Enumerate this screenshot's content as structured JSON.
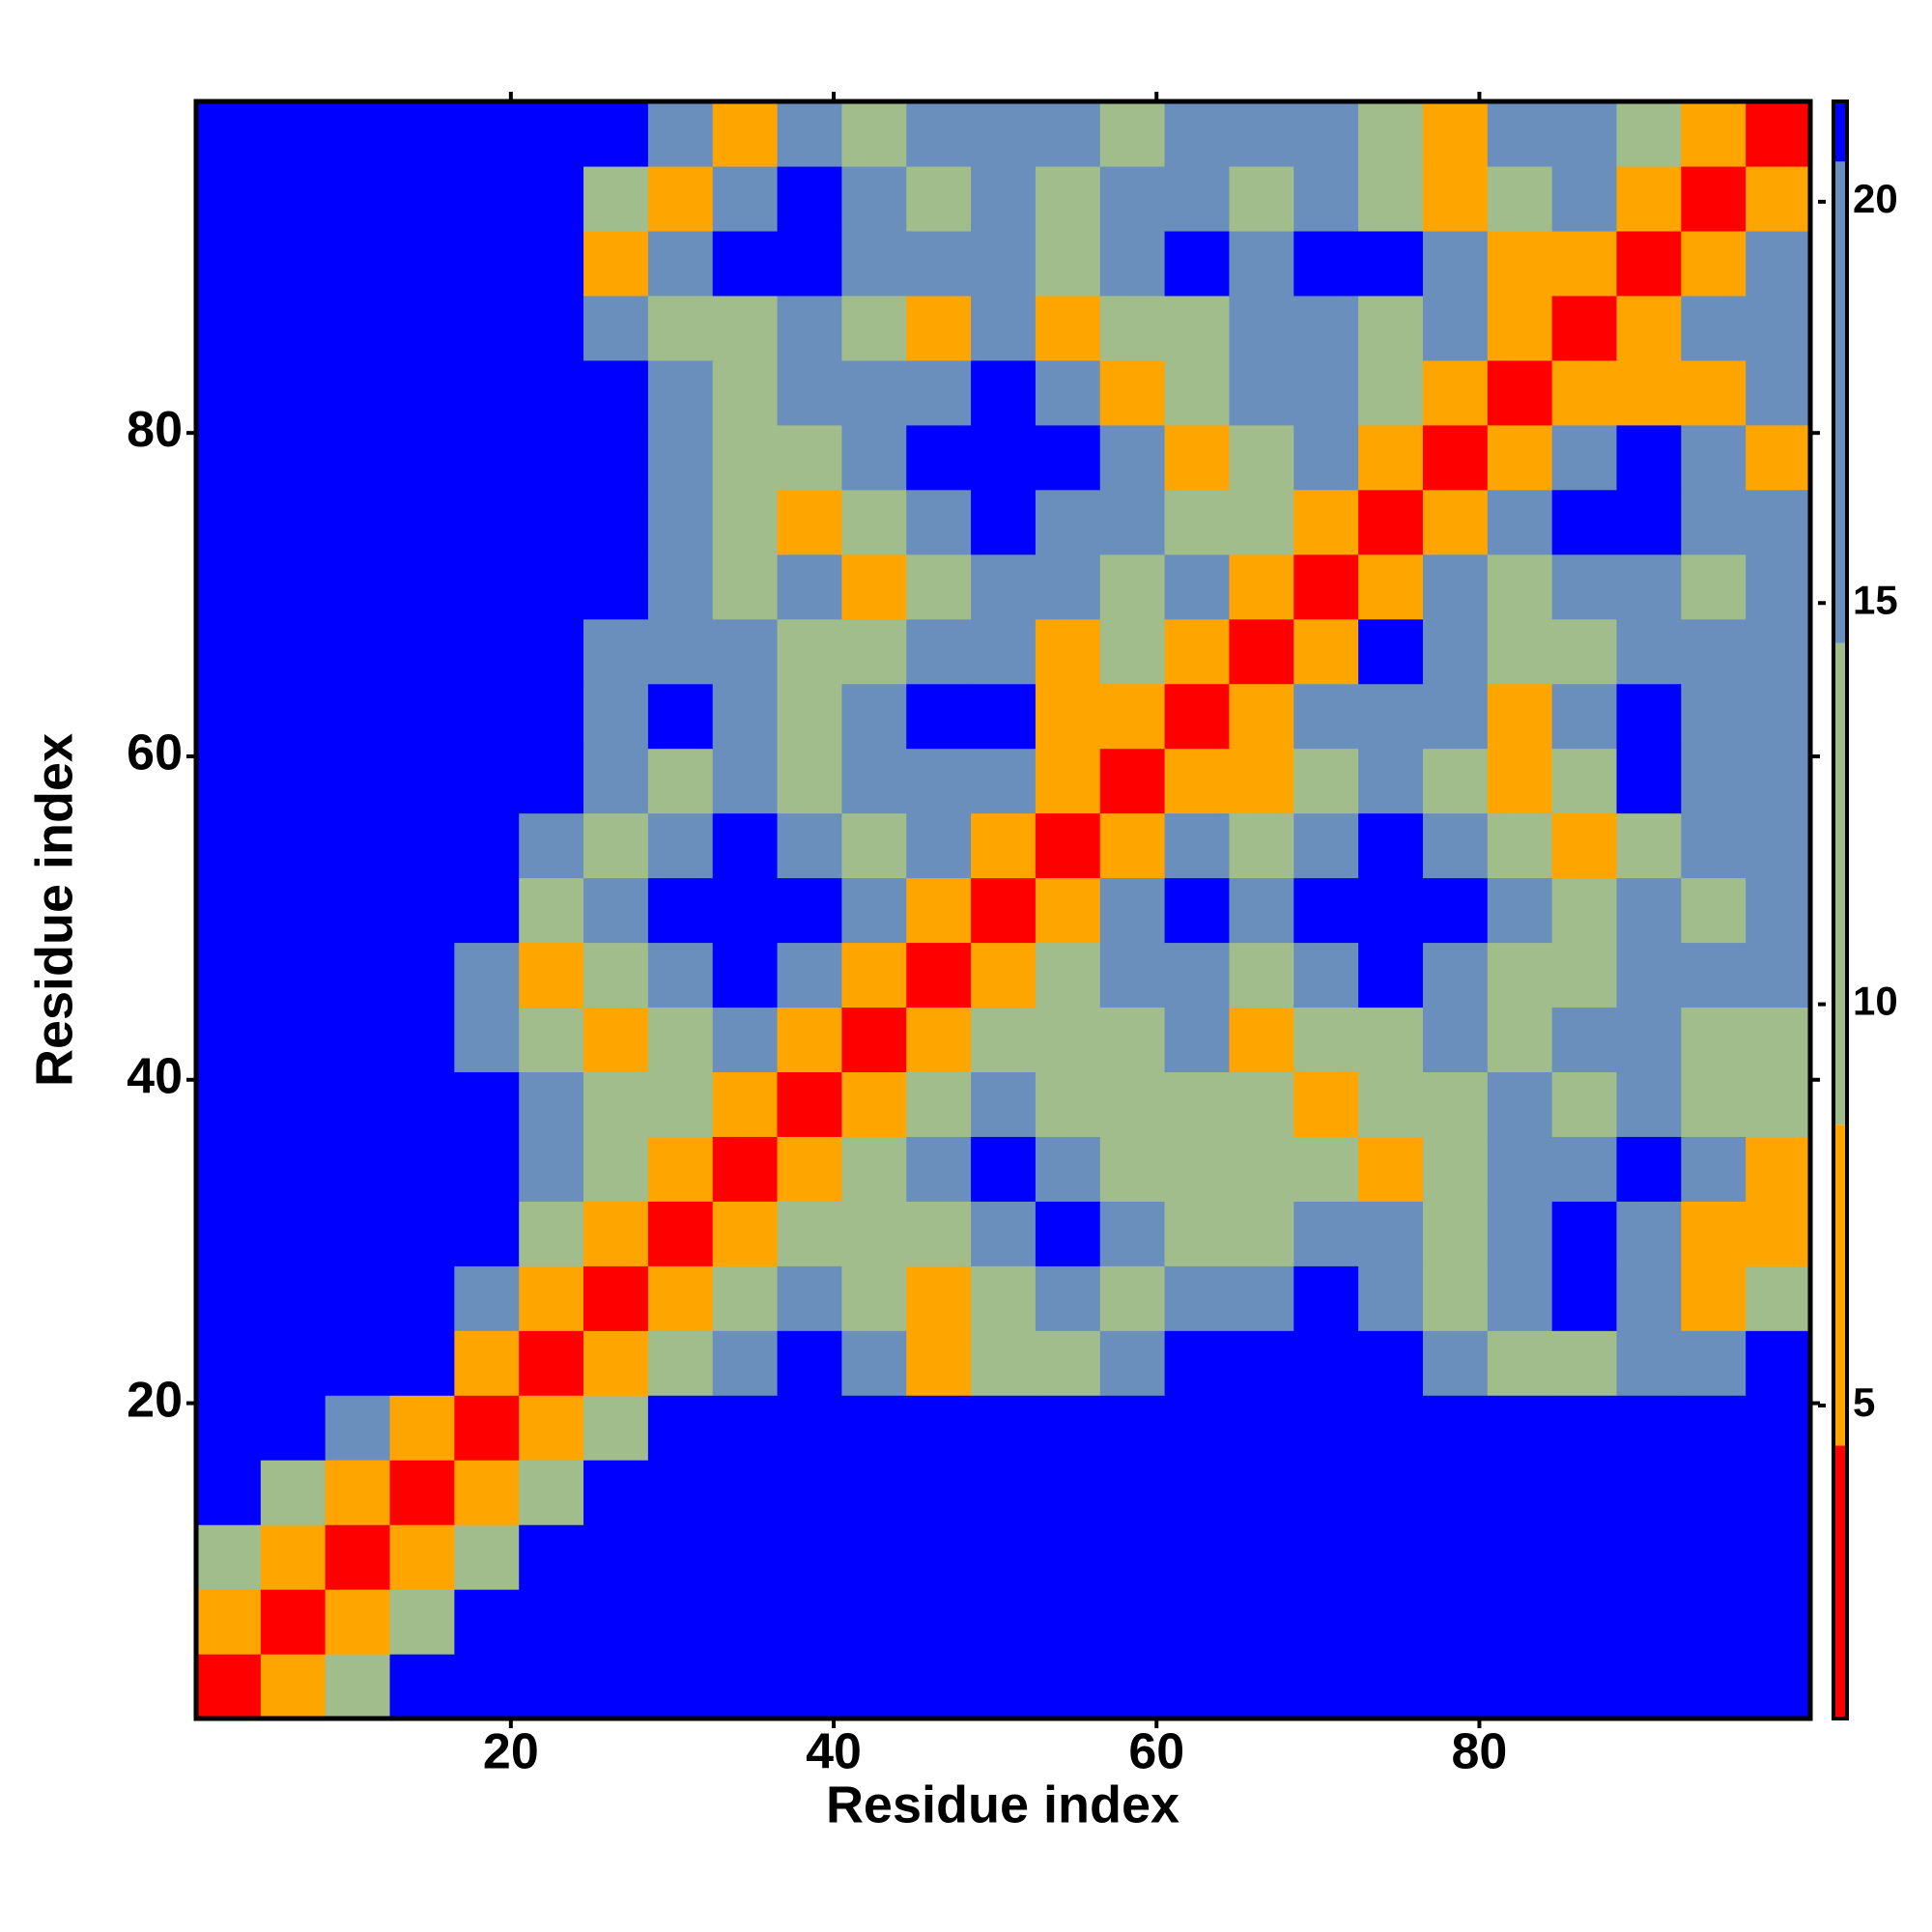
{
  "chart_data": {
    "type": "heatmap",
    "xlabel": "Residue index",
    "ylabel": "Residue index",
    "xlim": [
      0.5,
      100.5
    ],
    "ylim": [
      0.5,
      100.5
    ],
    "xticks": [
      20,
      40,
      60,
      80
    ],
    "yticks": [
      20,
      40,
      60,
      80
    ],
    "x": [
      2.5,
      6.5,
      10.5,
      14.5,
      18.5,
      22.5,
      26.5,
      30.5,
      34.5,
      38.5,
      42.5,
      46.5,
      50.5,
      54.5,
      58.5,
      62.5,
      66.5,
      70.5,
      74.5,
      78.5,
      82.5,
      86.5,
      90.5,
      94.5,
      98.5
    ],
    "y": [
      2.5,
      6.5,
      10.5,
      14.5,
      18.5,
      22.5,
      26.5,
      30.5,
      34.5,
      38.5,
      42.5,
      46.5,
      50.5,
      54.5,
      58.5,
      62.5,
      66.5,
      70.5,
      74.5,
      78.5,
      82.5,
      86.5,
      90.5,
      94.5,
      98.5
    ],
    "z": [
      [
        1.5,
        5,
        14,
        21,
        21,
        21,
        21,
        21,
        21,
        21,
        21,
        21,
        21,
        21,
        21,
        21,
        21,
        21,
        21,
        21,
        21,
        21,
        21,
        21,
        21
      ],
      [
        5,
        1.5,
        5,
        14,
        21,
        21,
        21,
        21,
        21,
        21,
        21,
        21,
        21,
        21,
        21,
        21,
        21,
        21,
        21,
        21,
        21,
        21,
        21,
        21,
        21
      ],
      [
        14,
        5,
        1.5,
        5,
        14,
        21,
        21,
        21,
        21,
        21,
        21,
        21,
        21,
        21,
        21,
        21,
        21,
        21,
        21,
        21,
        21,
        21,
        21,
        21,
        21
      ],
      [
        21,
        14,
        5,
        1.5,
        5,
        14,
        21,
        21,
        21,
        21,
        21,
        21,
        21,
        21,
        21,
        21,
        21,
        21,
        21,
        21,
        21,
        21,
        21,
        21,
        21
      ],
      [
        21,
        21,
        17,
        5,
        1.5,
        5,
        14,
        21,
        21,
        21,
        21,
        21,
        21,
        21,
        21,
        21,
        21,
        21,
        21,
        21,
        21,
        21,
        21,
        21,
        21
      ],
      [
        21,
        21,
        21,
        21,
        5,
        1.5,
        5,
        14,
        17,
        21,
        17,
        7,
        13,
        13,
        17,
        21,
        21,
        21,
        21,
        17,
        13,
        13,
        17,
        17,
        21
      ],
      [
        21,
        21,
        21,
        21,
        17,
        5,
        1.5,
        5,
        13,
        17,
        13,
        7,
        13,
        16,
        13,
        16,
        17,
        21,
        17,
        13,
        16,
        21,
        16,
        7,
        13
      ],
      [
        21,
        21,
        21,
        21,
        21,
        14,
        5,
        1.5,
        5,
        13,
        13,
        13,
        16,
        21,
        16,
        13,
        13,
        16,
        17,
        13,
        16,
        21,
        16,
        7,
        7
      ],
      [
        21,
        21,
        21,
        21,
        21,
        17,
        14,
        5,
        1.5,
        5,
        13,
        16,
        21,
        16,
        13,
        13,
        13,
        13,
        7,
        13,
        16,
        16,
        21,
        16,
        7
      ],
      [
        21,
        21,
        21,
        21,
        21,
        17,
        13,
        13,
        5,
        1.5,
        5,
        13,
        16,
        13,
        13,
        13,
        13,
        7,
        13,
        13,
        16,
        13,
        16,
        13,
        13
      ],
      [
        21,
        21,
        21,
        21,
        17,
        13,
        7,
        13,
        16,
        5,
        1.5,
        5,
        13,
        13,
        13,
        16,
        7,
        13,
        13,
        16,
        13,
        16,
        16,
        13,
        13
      ],
      [
        21,
        21,
        21,
        21,
        17,
        7,
        13,
        16,
        21,
        16,
        5,
        1.5,
        5,
        13,
        16,
        16,
        13,
        16,
        21,
        16,
        13,
        13,
        16,
        16,
        17
      ],
      [
        21,
        21,
        21,
        21,
        21,
        13,
        16,
        21,
        21,
        21,
        16,
        5,
        1.5,
        5,
        16,
        21,
        16,
        21,
        21,
        21,
        16,
        13,
        16,
        13,
        17
      ],
      [
        21,
        21,
        21,
        21,
        21,
        17,
        13,
        16,
        21,
        16,
        13,
        16,
        5,
        1.5,
        5,
        16,
        13,
        16,
        21,
        16,
        13,
        7,
        13,
        16,
        17
      ],
      [
        21,
        21,
        21,
        21,
        21,
        21,
        17,
        13,
        16,
        13,
        16,
        16,
        16,
        7,
        1.5,
        7,
        7,
        13,
        16,
        13,
        7,
        13,
        21,
        16,
        17
      ],
      [
        21,
        21,
        21,
        21,
        21,
        21,
        17,
        21,
        16,
        13,
        16,
        21,
        21,
        7,
        5,
        1.5,
        5,
        16,
        16,
        16,
        7,
        16,
        21,
        16,
        17
      ],
      [
        21,
        21,
        21,
        21,
        21,
        21,
        17,
        16,
        16,
        13,
        13,
        16,
        16,
        7,
        13,
        5,
        1.5,
        5,
        21,
        16,
        13,
        13,
        16,
        16,
        17
      ],
      [
        21,
        21,
        21,
        21,
        21,
        21,
        21,
        17,
        13,
        16,
        7,
        13,
        16,
        16,
        13,
        16,
        5,
        1.5,
        5,
        16,
        13,
        16,
        16,
        13,
        17
      ],
      [
        21,
        21,
        21,
        21,
        21,
        21,
        21,
        17,
        13,
        7,
        13,
        16,
        21,
        16,
        16,
        13,
        13,
        5,
        1.5,
        5,
        16,
        21,
        21,
        16,
        17
      ],
      [
        21,
        21,
        21,
        21,
        21,
        21,
        21,
        17,
        13,
        13,
        16,
        21,
        21,
        21,
        16,
        7,
        13,
        16,
        5,
        1.5,
        5,
        16,
        21,
        16,
        7
      ],
      [
        21,
        21,
        21,
        21,
        21,
        21,
        21,
        17,
        13,
        16,
        16,
        16,
        21,
        16,
        7,
        13,
        16,
        16,
        13,
        5,
        1.5,
        5,
        7,
        7,
        16
      ],
      [
        21,
        21,
        21,
        21,
        21,
        21,
        17,
        13,
        13,
        16,
        13,
        7,
        16,
        7,
        13,
        13,
        16,
        16,
        13,
        16,
        5,
        1.5,
        5,
        16,
        17
      ],
      [
        21,
        21,
        21,
        21,
        21,
        21,
        7,
        16,
        21,
        21,
        16,
        16,
        16,
        13,
        16,
        21,
        16,
        21,
        21,
        16,
        7,
        5,
        1.5,
        5,
        16
      ],
      [
        21,
        21,
        21,
        21,
        21,
        21,
        13,
        7,
        16,
        21,
        16,
        13,
        16,
        13,
        16,
        16,
        13,
        16,
        13,
        7,
        13,
        16,
        5,
        1.5,
        5
      ],
      [
        21,
        21,
        21,
        21,
        21,
        21,
        21,
        17,
        7,
        16,
        13,
        16,
        17,
        16,
        13,
        16,
        16,
        16,
        13,
        7,
        16,
        16,
        13,
        5,
        1.5
      ]
    ],
    "colorscale": [
      {
        "max": 4.5,
        "color": "#ff0000"
      },
      {
        "max": 8.5,
        "color": "#ffa500"
      },
      {
        "max": 14.5,
        "color": "#a2bd8c"
      },
      {
        "max": 20.5,
        "color": "#6b8fbd"
      },
      {
        "max": 21.25,
        "color": "#0000ff"
      }
    ],
    "clim": [
      1.1,
      21.25
    ],
    "cticks": [
      5,
      10,
      15,
      20
    ]
  }
}
